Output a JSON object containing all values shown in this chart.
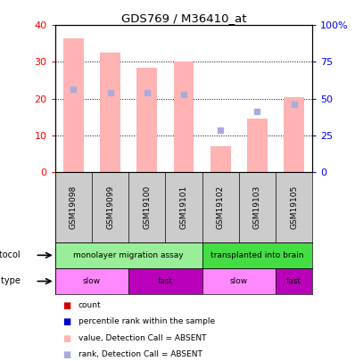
{
  "title": "GDS769 / M36410_at",
  "samples": [
    "GSM19098",
    "GSM19099",
    "GSM19100",
    "GSM19101",
    "GSM19102",
    "GSM19103",
    "GSM19105"
  ],
  "bar_values": [
    36.5,
    32.5,
    28.5,
    30.0,
    7.0,
    14.5,
    20.5
  ],
  "rank_values": [
    22.5,
    21.5,
    21.5,
    21.0,
    11.5,
    16.5,
    18.5
  ],
  "bar_color": "#FFB3B3",
  "rank_color": "#AAAADD",
  "ylim_left": [
    0,
    40
  ],
  "ylim_right": [
    0,
    100
  ],
  "yticks_left": [
    0,
    10,
    20,
    30,
    40
  ],
  "yticks_right": [
    0,
    25,
    50,
    75,
    100
  ],
  "ytick_labels_right": [
    "0",
    "25",
    "50",
    "75",
    "100%"
  ],
  "protocol_labels": [
    {
      "text": "monolayer migration assay",
      "start": 0,
      "end": 4,
      "color": "#99EE99"
    },
    {
      "text": "transplanted into brain",
      "start": 4,
      "end": 7,
      "color": "#44DD44"
    }
  ],
  "cell_type_labels": [
    {
      "text": "slow",
      "start": 0,
      "end": 2,
      "color": "#FF88FF"
    },
    {
      "text": "fast",
      "start": 2,
      "end": 4,
      "color": "#BB00BB"
    },
    {
      "text": "slow",
      "start": 4,
      "end": 6,
      "color": "#FF88FF"
    },
    {
      "text": "fast",
      "start": 6,
      "end": 7,
      "color": "#BB00BB"
    }
  ],
  "left_tick_color": "red",
  "right_tick_color": "blue",
  "bg_color": "#CCCCCC",
  "legend_items": [
    {
      "label": "count",
      "color": "#CC0000"
    },
    {
      "label": "percentile rank within the sample",
      "color": "#0000CC"
    },
    {
      "label": "value, Detection Call = ABSENT",
      "color": "#FFB3B3"
    },
    {
      "label": "rank, Detection Call = ABSENT",
      "color": "#AAAADD"
    }
  ]
}
